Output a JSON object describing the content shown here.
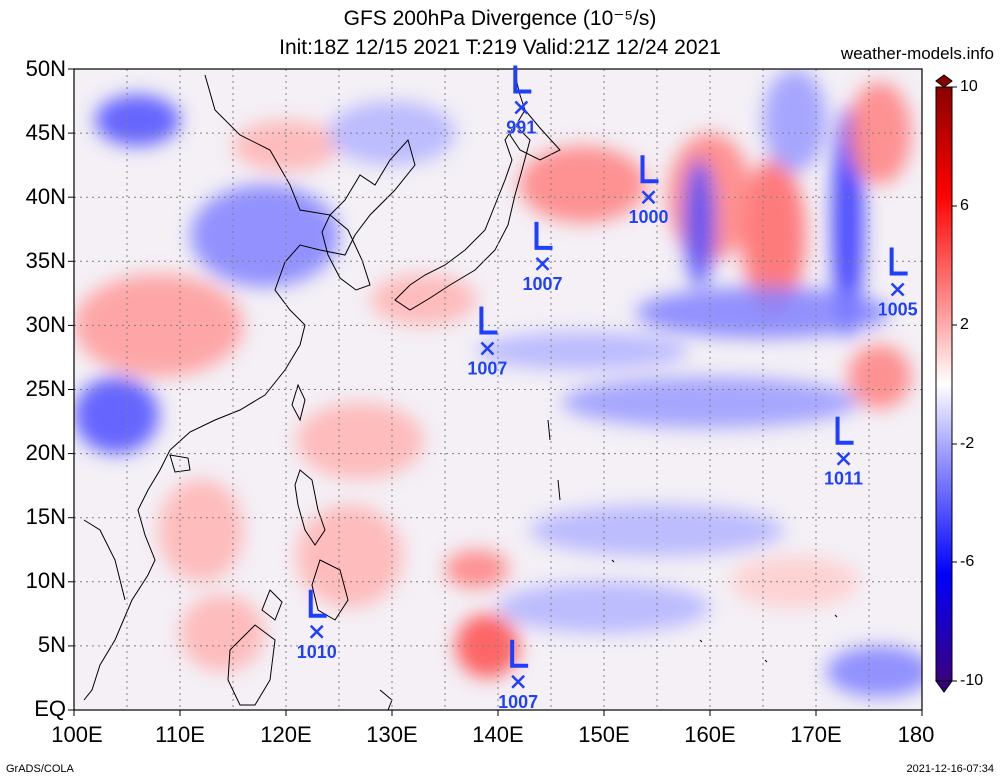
{
  "title_line1": "GFS 200hPa Divergence (10⁻⁵/s)",
  "title_line2": "Init:18Z 12/15 2021 T:219 Valid:21Z 12/24 2021",
  "site": "weather-models.info",
  "footer_left": "GrADS/COLA",
  "footer_right": "2021-12-16-07:34",
  "lat_labels": [
    "50N",
    "45N",
    "40N",
    "35N",
    "30N",
    "25N",
    "20N",
    "15N",
    "10N",
    "5N",
    "EQ"
  ],
  "lon_labels": [
    "100E",
    "110E",
    "120E",
    "130E",
    "140E",
    "150E",
    "160E",
    "170E",
    "180"
  ],
  "colorbar_labels": [
    "10",
    "6",
    "2",
    "-2",
    "-6",
    "-10"
  ],
  "colors": {
    "positive_max": "#cc0000",
    "negative_max": "#0000cc",
    "neutral": "#ffffff",
    "symbol": "#1f3fff",
    "coast": "#000000",
    "grid": "#888888"
  },
  "lows": [
    {
      "lon": 142.2,
      "lat": 47.0,
      "pressure": "991"
    },
    {
      "lon": 154.2,
      "lat": 40.0,
      "pressure": "1000"
    },
    {
      "lon": 144.2,
      "lat": 34.8,
      "pressure": "1007"
    },
    {
      "lon": 177.7,
      "lat": 32.8,
      "pressure": "1005"
    },
    {
      "lon": 139.0,
      "lat": 28.2,
      "pressure": "1007"
    },
    {
      "lon": 172.6,
      "lat": 19.6,
      "pressure": "1011"
    },
    {
      "lon": 122.9,
      "lat": 6.1,
      "pressure": "1010"
    },
    {
      "lon": 141.9,
      "lat": 2.2,
      "pressure": "1007"
    }
  ],
  "field_blobs": [
    {
      "lon": 108,
      "lat": 30,
      "rx": 8,
      "ry": 4,
      "value": 4
    },
    {
      "lon": 104,
      "lat": 23,
      "rx": 4,
      "ry": 3,
      "value": -7
    },
    {
      "lon": 106,
      "lat": 46,
      "rx": 4,
      "ry": 2,
      "value": -7
    },
    {
      "lon": 118,
      "lat": 37,
      "rx": 7,
      "ry": 4,
      "value": -5
    },
    {
      "lon": 148,
      "lat": 41,
      "rx": 6,
      "ry": 3,
      "value": 5
    },
    {
      "lon": 166,
      "lat": 37,
      "rx": 3,
      "ry": 6,
      "value": 6
    },
    {
      "lon": 160,
      "lat": 40,
      "rx": 4,
      "ry": 5,
      "value": 5
    },
    {
      "lon": 173,
      "lat": 38,
      "rx": 1.5,
      "ry": 9,
      "value": -8
    },
    {
      "lon": 159,
      "lat": 38,
      "rx": 1.5,
      "ry": 5,
      "value": -7
    },
    {
      "lon": 165,
      "lat": 31,
      "rx": 12,
      "ry": 2,
      "value": -5
    },
    {
      "lon": 176,
      "lat": 26,
      "rx": 3,
      "ry": 2.5,
      "value": 5
    },
    {
      "lon": 139,
      "lat": 5,
      "rx": 3,
      "ry": 2.5,
      "value": 7
    },
    {
      "lon": 138,
      "lat": 11,
      "rx": 3,
      "ry": 1.5,
      "value": 5
    },
    {
      "lon": 160,
      "lat": 24,
      "rx": 14,
      "ry": 2,
      "value": -4
    },
    {
      "lon": 126,
      "lat": 12,
      "rx": 5,
      "ry": 4,
      "value": 3
    },
    {
      "lon": 127,
      "lat": 21,
      "rx": 6,
      "ry": 3,
      "value": 3
    },
    {
      "lon": 112,
      "lat": 14,
      "rx": 4,
      "ry": 4,
      "value": 3
    },
    {
      "lon": 155,
      "lat": 14,
      "rx": 12,
      "ry": 2,
      "value": -3
    },
    {
      "lon": 150,
      "lat": 8,
      "rx": 10,
      "ry": 2,
      "value": -3
    },
    {
      "lon": 176,
      "lat": 3,
      "rx": 5,
      "ry": 2,
      "value": -5
    },
    {
      "lon": 176,
      "lat": 45,
      "rx": 3,
      "ry": 4,
      "value": 5
    },
    {
      "lon": 120,
      "lat": 44,
      "rx": 5,
      "ry": 2,
      "value": 3
    },
    {
      "lon": 133,
      "lat": 32,
      "rx": 5,
      "ry": 2,
      "value": 3
    },
    {
      "lon": 148,
      "lat": 28,
      "rx": 10,
      "ry": 1.5,
      "value": -3
    },
    {
      "lon": 168,
      "lat": 10,
      "rx": 6,
      "ry": 2,
      "value": 2
    },
    {
      "lon": 114,
      "lat": 6,
      "rx": 4,
      "ry": 3,
      "value": 3
    },
    {
      "lon": 130,
      "lat": 45,
      "rx": 6,
      "ry": 2.5,
      "value": -3
    },
    {
      "lon": 168,
      "lat": 46,
      "rx": 3,
      "ry": 4,
      "value": -4
    }
  ]
}
